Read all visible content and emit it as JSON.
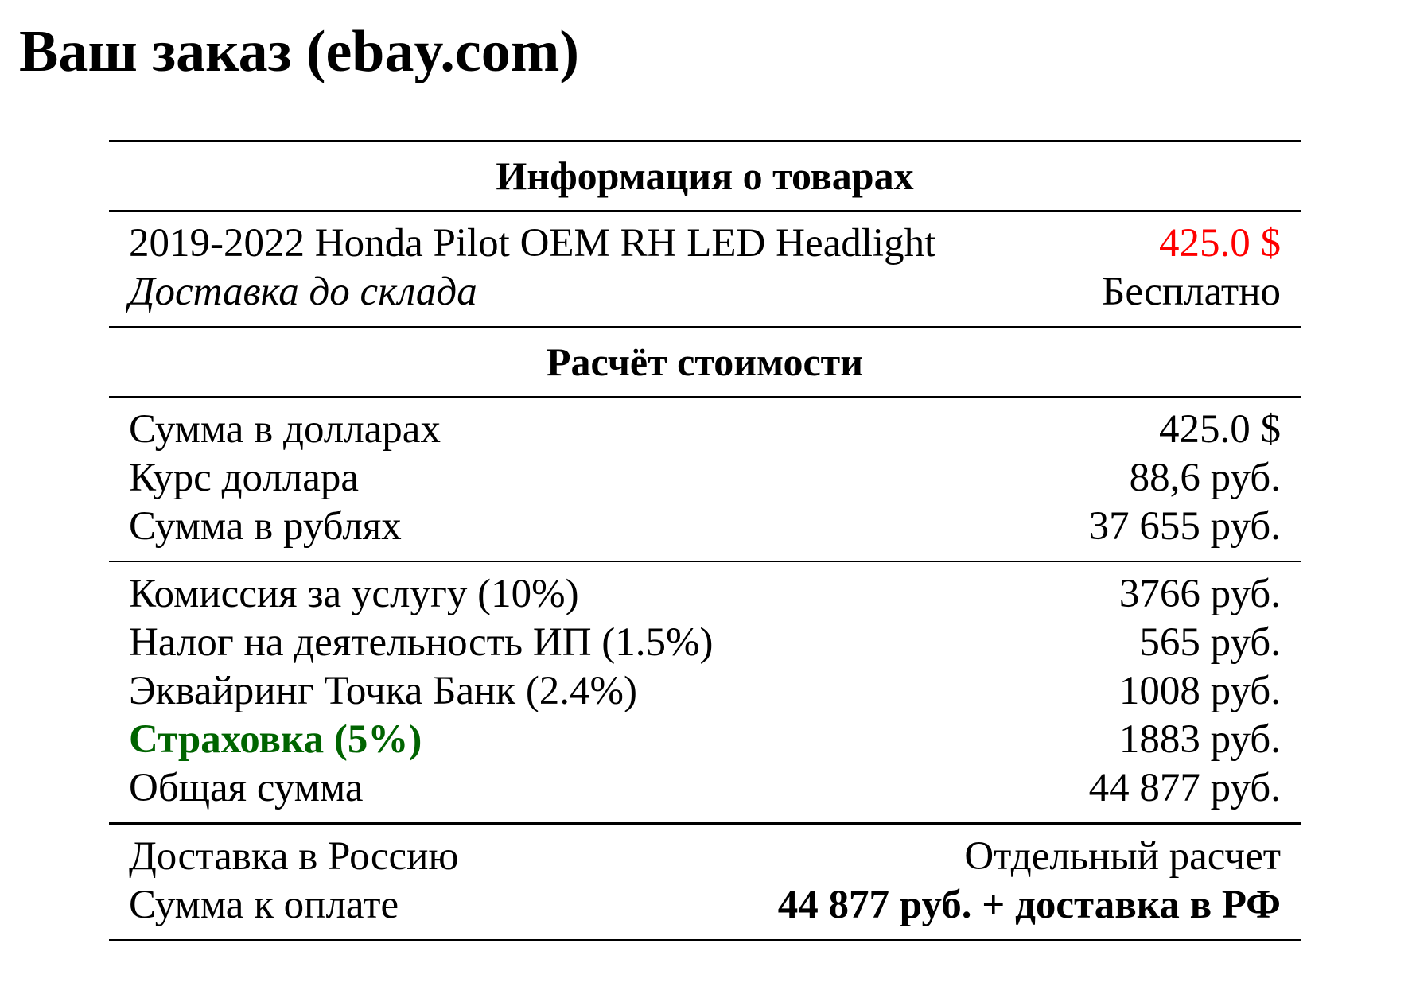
{
  "title": "Ваш заказ (ebay.com)",
  "colors": {
    "price": "#ff0000",
    "insurance": "#006400"
  },
  "goods": {
    "header": "Информация о товарах",
    "item_name": "2019-2022 Honda Pilot OEM RH LED Headlight",
    "item_price": "425.0 $",
    "delivery_label": "Доставка до склада",
    "delivery_value": "Бесплатно"
  },
  "calc": {
    "header": "Расчёт стоимости",
    "base": [
      {
        "label": "Сумма в долларах",
        "value": "425.0 $"
      },
      {
        "label": "Курс доллара",
        "value": "88,6 руб."
      },
      {
        "label": "Сумма в рублях",
        "value": "37 655 руб."
      }
    ],
    "fees": [
      {
        "label": "Комиссия за услугу (10%)",
        "value": "3766 руб."
      },
      {
        "label": "Налог на деятельность ИП (1.5%)",
        "value": "565 руб."
      },
      {
        "label": "Эквайринг Точка Банк (2.4%)",
        "value": "1008 руб."
      },
      {
        "label": "Страховка (5%)",
        "value": "1883 руб."
      },
      {
        "label": "Общая сумма",
        "value": "44 877 руб."
      }
    ],
    "final": [
      {
        "label": "Доставка в Россию",
        "value": "Отдельный расчет"
      },
      {
        "label": "Сумма к оплате",
        "value": "44 877 руб. + доставка в РФ"
      }
    ]
  }
}
